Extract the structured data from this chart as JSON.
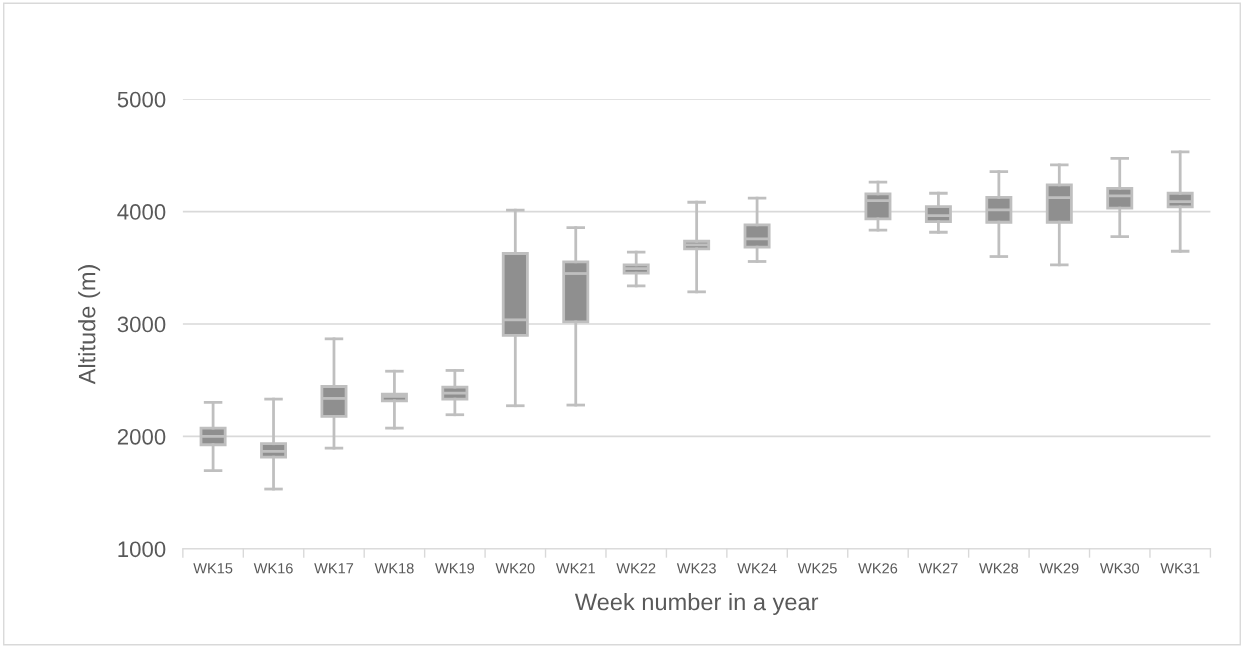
{
  "chart_data": {
    "type": "box",
    "xlabel": "Week number in a year",
    "ylabel": "Altitude (m)",
    "categories": [
      "WK15",
      "WK16",
      "WK17",
      "WK18",
      "WK19",
      "WK20",
      "WK21",
      "WK22",
      "WK23",
      "WK24",
      "WK25",
      "WK26",
      "WK27",
      "WK28",
      "WK29",
      "WK30",
      "WK31"
    ],
    "color": "#8f8f8f",
    "boxes": [
      {
        "low": 1695,
        "q1": 1926,
        "median": 2000,
        "q3": 2074,
        "high": 2302
      },
      {
        "low": 1532,
        "q1": 1816,
        "median": 1867,
        "q3": 1935,
        "high": 2332
      },
      {
        "low": 1896,
        "q1": 2178,
        "median": 2338,
        "q3": 2444,
        "high": 2868
      },
      {
        "low": 2074,
        "q1": 2317,
        "median": 2356,
        "q3": 2376,
        "high": 2580
      },
      {
        "low": 2193,
        "q1": 2332,
        "median": 2385,
        "q3": 2439,
        "high": 2587
      },
      {
        "low": 2273,
        "q1": 2898,
        "median": 3037,
        "q3": 3627,
        "high": 4012
      },
      {
        "low": 2279,
        "q1": 3019,
        "median": 3449,
        "q3": 3553,
        "high": 3858
      },
      {
        "low": 3339,
        "q1": 3452,
        "median": 3493,
        "q3": 3526,
        "high": 3639
      },
      {
        "low": 3286,
        "q1": 3668,
        "median": 3704,
        "q3": 3736,
        "high": 4083
      },
      {
        "low": 3556,
        "q1": 3683,
        "median": 3757,
        "q3": 3881,
        "high": 4119
      },
      null,
      {
        "low": 3834,
        "q1": 3935,
        "median": 4098,
        "q3": 4157,
        "high": 4261
      },
      {
        "low": 3816,
        "q1": 3911,
        "median": 3964,
        "q3": 4044,
        "high": 4163
      },
      {
        "low": 3600,
        "q1": 3905,
        "median": 4015,
        "q3": 4127,
        "high": 4356
      },
      {
        "low": 3526,
        "q1": 3905,
        "median": 4124,
        "q3": 4237,
        "high": 4415
      },
      {
        "low": 3778,
        "q1": 4030,
        "median": 4139,
        "q3": 4207,
        "high": 4474
      },
      {
        "low": 3647,
        "q1": 4041,
        "median": 4089,
        "q3": 4163,
        "high": 4530
      }
    ],
    "ylim": [
      1000,
      5000
    ],
    "yticks": [
      1000,
      2000,
      3000,
      4000,
      5000
    ],
    "grid": "y"
  }
}
